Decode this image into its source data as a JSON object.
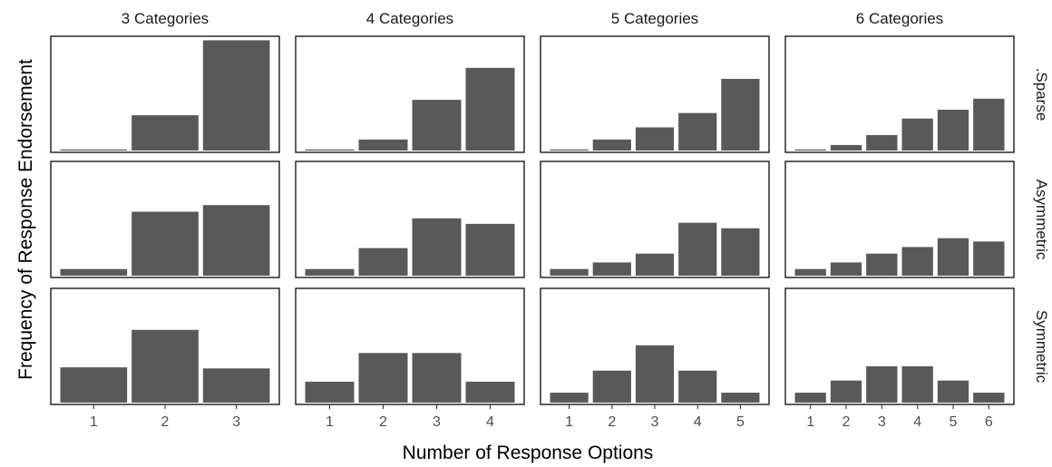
{
  "chart_data": {
    "type": "bar",
    "xlabel": "Number of Response Options",
    "ylabel": "Frequency of Response Endorsement",
    "bar_color": "#595959",
    "columns": [
      {
        "label": "3 Categories",
        "categories": [
          "1",
          "2",
          "3"
        ]
      },
      {
        "label": "4 Categories",
        "categories": [
          "1",
          "2",
          "3",
          "4"
        ]
      },
      {
        "label": "5 Categories",
        "categories": [
          "1",
          "2",
          "3",
          "4",
          "5"
        ]
      },
      {
        "label": "6 Categories",
        "categories": [
          "1",
          "2",
          "3",
          "4",
          "5",
          "6"
        ]
      }
    ],
    "rows": [
      {
        "label": ".Sparse",
        "panels": [
          [
            0.01,
            0.32,
            1.0
          ],
          [
            0.01,
            0.1,
            0.46,
            0.75
          ],
          [
            0.01,
            0.1,
            0.21,
            0.34,
            0.65
          ],
          [
            0.01,
            0.05,
            0.14,
            0.29,
            0.37,
            0.47
          ]
        ]
      },
      {
        "label": "Asymmetric",
        "panels": [
          [
            0.06,
            0.58,
            0.64
          ],
          [
            0.06,
            0.25,
            0.52,
            0.47
          ],
          [
            0.06,
            0.12,
            0.2,
            0.48,
            0.43
          ],
          [
            0.06,
            0.12,
            0.2,
            0.26,
            0.34,
            0.31
          ]
        ]
      },
      {
        "label": "Symmetric",
        "panels": [
          [
            0.32,
            0.66,
            0.31
          ],
          [
            0.19,
            0.45,
            0.45,
            0.19
          ],
          [
            0.09,
            0.29,
            0.52,
            0.29,
            0.09
          ],
          [
            0.09,
            0.2,
            0.33,
            0.33,
            0.2,
            0.09
          ]
        ]
      }
    ],
    "ylim": [
      0,
      1.02
    ],
    "grid": false
  }
}
